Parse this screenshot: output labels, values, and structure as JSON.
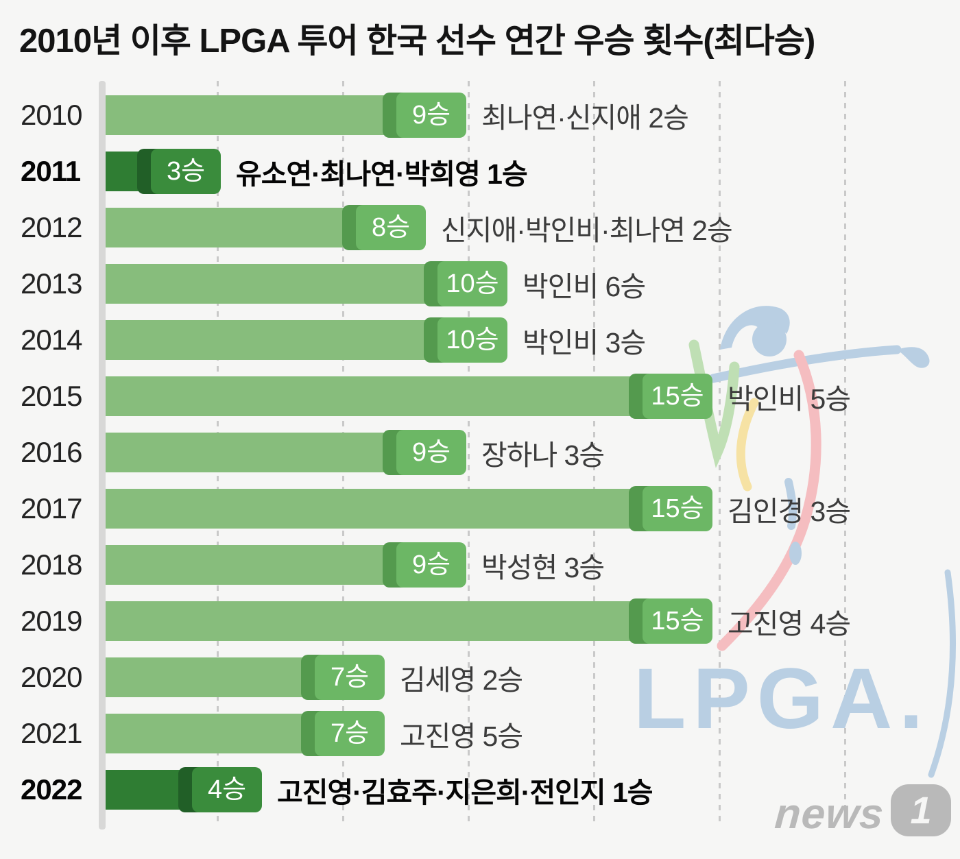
{
  "title": "2010년 이후 LPGA 투어 한국 선수 연간 우승 횟수(최다승)",
  "chart_data": {
    "type": "bar",
    "orientation": "horizontal",
    "title": "2010년 이후 LPGA 투어 한국 선수 연간 우승 횟수(최다승)",
    "unit": "승",
    "categories": [
      "2010",
      "2011",
      "2012",
      "2013",
      "2014",
      "2015",
      "2016",
      "2017",
      "2018",
      "2019",
      "2020",
      "2021",
      "2022"
    ],
    "values": [
      9,
      3,
      8,
      10,
      10,
      15,
      9,
      15,
      9,
      15,
      7,
      7,
      4
    ],
    "xlim": [
      0,
      18
    ],
    "grid": "vertical-dashed",
    "rows": [
      {
        "year": "2010",
        "wins": 9,
        "badge": "9승",
        "annotation": "최나연·신지애 2승",
        "highlight": false
      },
      {
        "year": "2011",
        "wins": 3,
        "badge": "3승",
        "annotation": "유소연·최나연·박희영 1승",
        "highlight": true
      },
      {
        "year": "2012",
        "wins": 8,
        "badge": "8승",
        "annotation": "신지애·박인비·최나연 2승",
        "highlight": false
      },
      {
        "year": "2013",
        "wins": 10,
        "badge": "10승",
        "annotation": "박인비 6승",
        "highlight": false
      },
      {
        "year": "2014",
        "wins": 10,
        "badge": "10승",
        "annotation": "박인비 3승",
        "highlight": false
      },
      {
        "year": "2015",
        "wins": 15,
        "badge": "15승",
        "annotation": "박인비 5승",
        "highlight": false
      },
      {
        "year": "2016",
        "wins": 9,
        "badge": "9승",
        "annotation": "장하나 3승",
        "highlight": false
      },
      {
        "year": "2017",
        "wins": 15,
        "badge": "15승",
        "annotation": "김인경 3승",
        "highlight": false
      },
      {
        "year": "2018",
        "wins": 9,
        "badge": "9승",
        "annotation": "박성현 3승",
        "highlight": false
      },
      {
        "year": "2019",
        "wins": 15,
        "badge": "15승",
        "annotation": "고진영 4승",
        "highlight": false
      },
      {
        "year": "2020",
        "wins": 7,
        "badge": "7승",
        "annotation": "김세영 2승",
        "highlight": false
      },
      {
        "year": "2021",
        "wins": 7,
        "badge": "7승",
        "annotation": "고진영 5승",
        "highlight": false
      },
      {
        "year": "2022",
        "wins": 4,
        "badge": "4승",
        "annotation": "고진영·김효주·지은희·전인지 1승",
        "highlight": true
      }
    ]
  },
  "watermark": {
    "lpga_text": "LPGA."
  },
  "footer": {
    "news_word": "news",
    "news_number": "1"
  },
  "colors": {
    "background": "#f6f6f5",
    "bar_green": "#87bd7c",
    "badge_green": "#6cb765",
    "badge_shadow_green": "#549a4e",
    "bar_dark_green": "#2f7d33",
    "badge_dark_green": "#3a8c3c",
    "badge_shadow_dark_green": "#215f27",
    "badge_text": "#ffffff",
    "axis_gray": "#d8d8d7",
    "gridline_gray": "#c9c9c9",
    "annotation_gray": "#3c3c3c",
    "watermark_blue": "#b9cfe3",
    "watermark_red": "#f5bdc0",
    "watermark_yellow": "#f6e2a4",
    "watermark_green": "#bfdfb4",
    "news_gray": "#b9b9b9"
  }
}
